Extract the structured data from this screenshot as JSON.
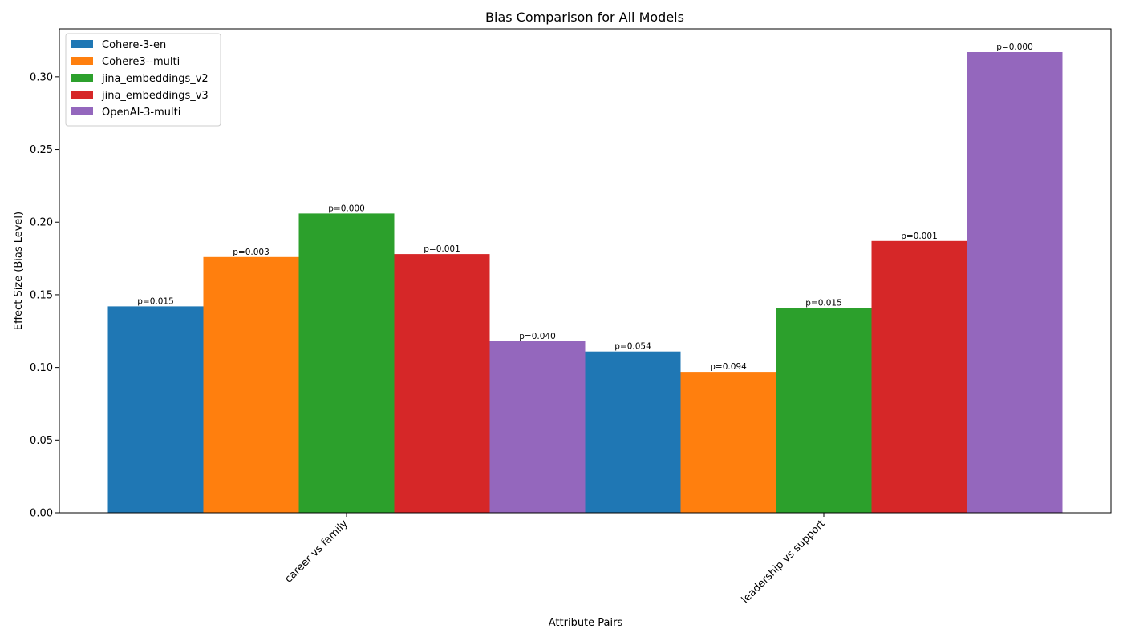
{
  "chart_data": {
    "type": "bar",
    "title": "Bias Comparison for All Models",
    "xlabel": "Attribute Pairs",
    "ylabel": "Effect Size (Bias Level)",
    "categories": [
      "career vs family",
      "leadership vs support"
    ],
    "ylim": [
      0,
      0.333
    ],
    "yticks": [
      0.0,
      0.05,
      0.1,
      0.15,
      0.2,
      0.25,
      0.3
    ],
    "ytick_labels": [
      "0.00",
      "0.05",
      "0.10",
      "0.15",
      "0.20",
      "0.25",
      "0.30"
    ],
    "grid": false,
    "legend_position": "top-left",
    "series": [
      {
        "name": "Cohere-3-en",
        "color": "#1f77b4",
        "values": [
          0.142,
          0.111
        ],
        "annotations": [
          "p=0.015",
          "p=0.054"
        ]
      },
      {
        "name": "Cohere3--multi",
        "color": "#ff7f0e",
        "values": [
          0.176,
          0.097
        ],
        "annotations": [
          "p=0.003",
          "p=0.094"
        ]
      },
      {
        "name": "jina_embeddings_v2",
        "color": "#2ca02c",
        "values": [
          0.206,
          0.141
        ],
        "annotations": [
          "p=0.000",
          "p=0.015"
        ]
      },
      {
        "name": "jina_embeddings_v3",
        "color": "#d62728",
        "values": [
          0.178,
          0.187
        ],
        "annotations": [
          "p=0.001",
          "p=0.001"
        ]
      },
      {
        "name": "OpenAI-3-multi",
        "color": "#9467bd",
        "values": [
          0.118,
          0.317
        ],
        "annotations": [
          "p=0.040",
          "p=0.000"
        ]
      }
    ]
  }
}
